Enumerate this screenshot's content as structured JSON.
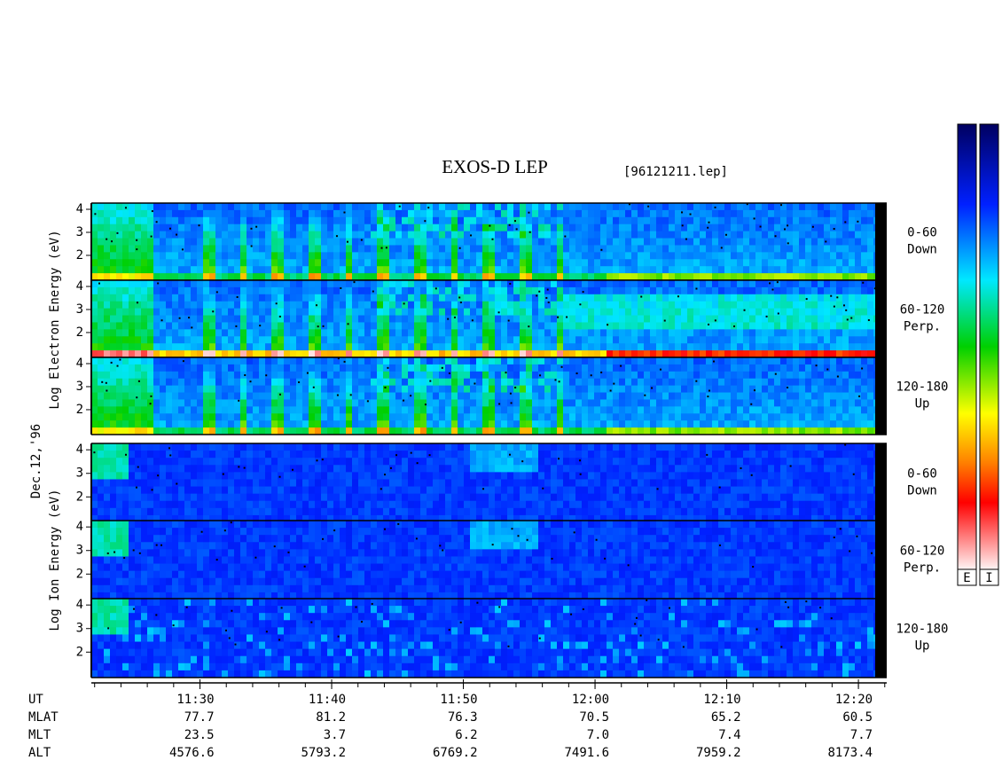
{
  "title": "EXOS-D LEP",
  "file": "[96121211.lep]",
  "date": "Dec.12,'96",
  "panels": [
    {
      "ylabel": "Log  Electron  Energy (eV)",
      "subpanels": [
        {
          "angle": "0-60",
          "direction": "Down"
        },
        {
          "angle": "60-120",
          "direction": "Perp."
        },
        {
          "angle": "120-180",
          "direction": "Up"
        }
      ]
    },
    {
      "ylabel": "Log  Ion  Energy (eV)",
      "subpanels": [
        {
          "angle": "0-60",
          "direction": "Down"
        },
        {
          "angle": "60-120",
          "direction": "Perp."
        },
        {
          "angle": "120-180",
          "direction": "Up"
        }
      ]
    }
  ],
  "ylim": [
    0.92,
    4.27
  ],
  "yticks": [
    2,
    3,
    4
  ],
  "x_axis": {
    "xlim": [
      681.75,
      742.15
    ],
    "minor_step": 2,
    "xticks": [
      {
        "value": 690,
        "label": "11:30"
      },
      {
        "value": 700,
        "label": "11:40"
      },
      {
        "value": 710,
        "label": "11:50"
      },
      {
        "value": 720,
        "label": "12:00"
      },
      {
        "value": 730,
        "label": "12:10"
      },
      {
        "value": 740,
        "label": "12:20"
      }
    ]
  },
  "orbit": {
    "rows": [
      {
        "name": "UT"
      },
      {
        "name": "MLAT",
        "values": [
          "77.7",
          "81.2",
          "76.3",
          "70.5",
          "65.2",
          "60.5"
        ]
      },
      {
        "name": "MLT",
        "values": [
          "23.5",
          "3.7",
          "6.2",
          "7.0",
          "7.4",
          "7.7"
        ]
      },
      {
        "name": "ALT",
        "values": [
          "4576.6",
          "5793.2",
          "6769.2",
          "7491.6",
          "7959.2",
          "8173.4"
        ]
      }
    ]
  },
  "colorbar": {
    "labels": [
      "E",
      "I"
    ]
  }
}
